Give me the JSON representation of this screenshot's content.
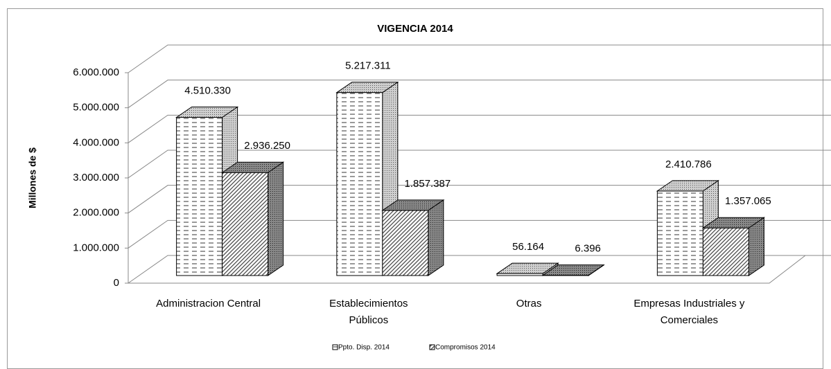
{
  "chart_data": {
    "type": "bar3d",
    "title": "VIGENCIA 2014",
    "y_label": "Millones de $",
    "categories": [
      "Administracion Central",
      "Establecimientos Públicos",
      "Otras",
      "Empresas Industriales y Comerciales"
    ],
    "series": [
      {
        "name": "Ppto. Disp. 2014",
        "color": "#ffffff",
        "values": [
          4510330,
          5217311,
          56164,
          2410786
        ],
        "value_labels": [
          "4.510.330",
          "5.217.311",
          "56.164",
          "2.410.786"
        ]
      },
      {
        "name": "Compromisos 2014",
        "color": "#404040",
        "values": [
          2936250,
          1857387,
          6396,
          1357065
        ],
        "value_labels": [
          "2.936.250",
          "1.857.387",
          "6.396",
          "1.357.065"
        ]
      }
    ],
    "ylim": [
      0,
      6000000
    ],
    "yticks": [
      0,
      {
        "value": 1000000,
        "label": "1.000.000"
      },
      {
        "value": 2000000,
        "label": "2.000.000"
      },
      {
        "value": 3000000,
        "label": "3.000.000"
      },
      {
        "value": 4000000,
        "label": "4.000.000"
      },
      {
        "value": 5000000,
        "label": "5.000.000"
      },
      {
        "value": 6000000,
        "label": "6.000.000"
      }
    ],
    "grid": true
  }
}
